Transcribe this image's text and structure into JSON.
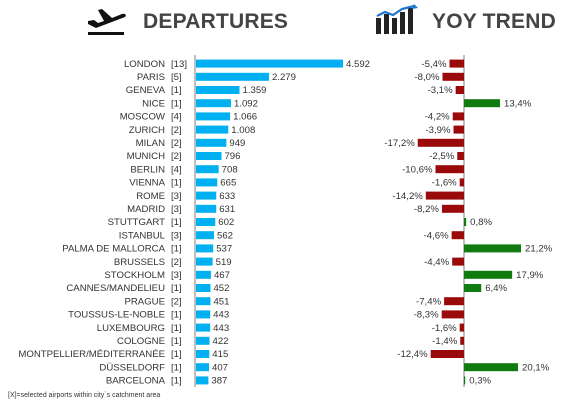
{
  "header": {
    "departures_title": "DEPARTURES",
    "trend_title": "YOY TREND",
    "departures_icon": "airplane-takeoff-icon",
    "trend_icon": "bar-chart-trend-icon"
  },
  "footnote": "[X]=selected airports within city`s catchment area",
  "colors": {
    "departures_bar": "#00b0f0",
    "trend_negative": "#9b0a0a",
    "trend_positive": "#107c10",
    "axis": "#7f7f7f",
    "text": "#333333"
  },
  "chart_data": [
    {
      "type": "bar",
      "orientation": "horizontal",
      "title": "DEPARTURES",
      "categories": [
        "LONDON",
        "PARIS",
        "GENEVA",
        "NICE",
        "MOSCOW",
        "ZURICH",
        "MILAN",
        "MUNICH",
        "BERLIN",
        "VIENNA",
        "ROME",
        "MADRID",
        "STUTTGART",
        "ISTANBUL",
        "PALMA DE MALLORCA",
        "BRUSSELS",
        "STOCKHOLM",
        "CANNES/MANDELIEU",
        "PRAGUE",
        "TOUSSUS-LE-NOBLE",
        "LUXEMBOURG",
        "COLOGNE",
        "MONTPELLIER/MÉDITERRANÉE",
        "DÜSSELDORF",
        "BARCELONA"
      ],
      "airport_counts": [
        "[13]",
        "[5]",
        "[1]",
        "[1]",
        "[4]",
        "[2]",
        "[2]",
        "[2]",
        "[4]",
        "[1]",
        "[3]",
        "[3]",
        "[1]",
        "[3]",
        "[1]",
        "[2]",
        "[3]",
        "[1]",
        "[2]",
        "[1]",
        "[1]",
        "[1]",
        "[1]",
        "[1]",
        "[1]"
      ],
      "values": [
        4592,
        2279,
        1359,
        1092,
        1066,
        1008,
        949,
        796,
        708,
        665,
        633,
        631,
        602,
        562,
        537,
        519,
        467,
        452,
        451,
        443,
        443,
        422,
        415,
        407,
        387
      ],
      "value_labels": [
        "4.592",
        "2.279",
        "1.359",
        "1.092",
        "1.066",
        "1.008",
        "949",
        "796",
        "708",
        "665",
        "633",
        "631",
        "602",
        "562",
        "537",
        "519",
        "467",
        "452",
        "451",
        "443",
        "443",
        "422",
        "415",
        "407",
        "387"
      ]
    },
    {
      "type": "bar",
      "orientation": "horizontal",
      "title": "YOY TREND",
      "categories": [
        "LONDON",
        "PARIS",
        "GENEVA",
        "NICE",
        "MOSCOW",
        "ZURICH",
        "MILAN",
        "MUNICH",
        "BERLIN",
        "VIENNA",
        "ROME",
        "MADRID",
        "STUTTGART",
        "ISTANBUL",
        "PALMA DE MALLORCA",
        "BRUSSELS",
        "STOCKHOLM",
        "CANNES/MANDELIEU",
        "PRAGUE",
        "TOUSSUS-LE-NOBLE",
        "LUXEMBOURG",
        "COLOGNE",
        "MONTPELLIER/MÉDITERRANÉE",
        "DÜSSELDORF",
        "BARCELONA"
      ],
      "values": [
        -5.4,
        -8.0,
        -3.1,
        13.4,
        -4.2,
        -3.9,
        -17.2,
        -2.5,
        -10.6,
        -1.6,
        -14.2,
        -8.2,
        0.8,
        -4.6,
        21.2,
        -4.4,
        17.9,
        6.4,
        -7.4,
        -8.3,
        -1.6,
        -1.4,
        -12.4,
        20.1,
        0.3
      ],
      "value_labels": [
        "-5,4%",
        "-8,0%",
        "-3,1%",
        "13,4%",
        "-4,2%",
        "-3,9%",
        "-17,2%",
        "-2,5%",
        "-10,6%",
        "-1,6%",
        "-14,2%",
        "-8,2%",
        "0,8%",
        "-4,6%",
        "21,2%",
        "-4,4%",
        "17,9%",
        "6,4%",
        "-7,4%",
        "-8,3%",
        "-1,6%",
        "-1,4%",
        "-12,4%",
        "20,1%",
        "0,3%"
      ]
    }
  ]
}
